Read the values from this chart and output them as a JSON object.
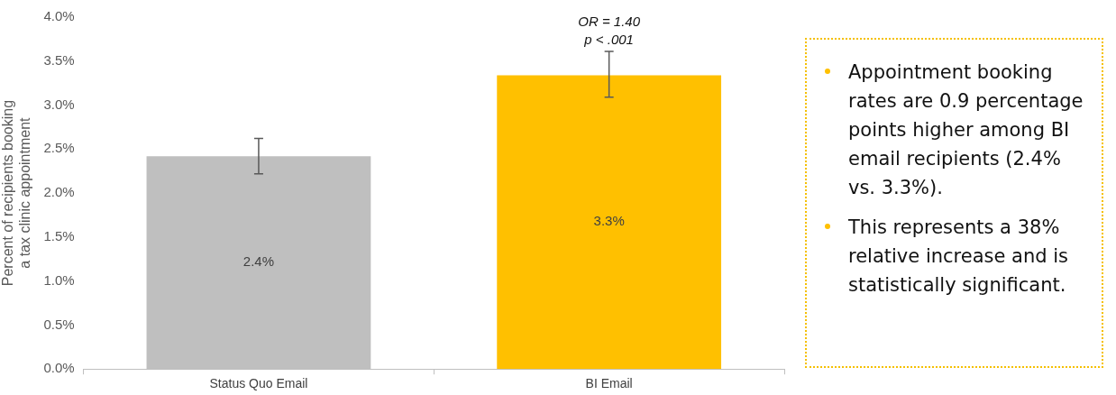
{
  "chart_data": {
    "type": "bar",
    "ylabel": "Percent of recipients booking a tax clinic appointment",
    "categories": [
      "Status Quo Email",
      "BI Email"
    ],
    "values": [
      2.42,
      3.34
    ],
    "colors": [
      "#bfbfbf",
      "#ffc000"
    ],
    "errors": [
      [
        2.22,
        2.62
      ],
      [
        3.09,
        3.61
      ]
    ],
    "value_labels": [
      "2.4%",
      "3.3%"
    ],
    "ylim": [
      0,
      4
    ],
    "yticks": [
      {
        "value": 0,
        "label": "0.0%"
      },
      {
        "value": 0.5,
        "label": "0.5%"
      },
      {
        "value": 1,
        "label": "1.0%"
      },
      {
        "value": 1.5,
        "label": "1.5%"
      },
      {
        "value": 2,
        "label": "2.0%"
      },
      {
        "value": 2.5,
        "label": "2.5%"
      },
      {
        "value": 3,
        "label": "3.0%"
      },
      {
        "value": 3.5,
        "label": "3.5%"
      },
      {
        "value": 4,
        "label": "4.0%"
      }
    ],
    "grid": false,
    "legend": false,
    "annotations": [
      {
        "text": "OR = 1.40",
        "x": "BI Email",
        "y": 3.61
      },
      {
        "text": "p < .001",
        "x": "BI Email",
        "y": 3.61
      },
      "Appointment booking rates are 0.9 percentage points higher among BI email recipients (2.4% vs. 3.3%).",
      "This represents a 38% relative increase and is statistically significant."
    ]
  }
}
